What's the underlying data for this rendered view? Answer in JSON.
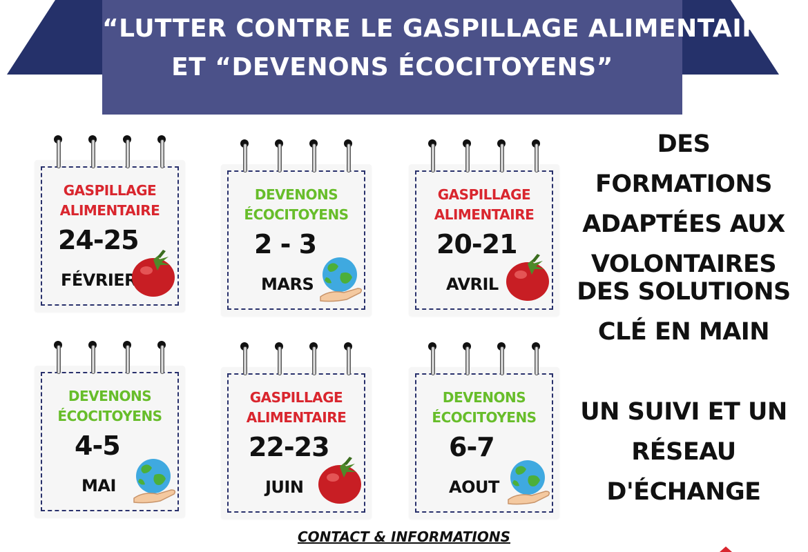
{
  "banner": {
    "line1": "“LUTTER CONTRE LE GASPILLAGE ALIMENTAIRE”",
    "line2": "ET “DEVENONS ÉCOCITOYENS”"
  },
  "colors": {
    "banner": "#4b5189",
    "ribbon": "#25316a",
    "topic_red": "#d9262e",
    "topic_green": "#67bd2a"
  },
  "cards": [
    {
      "topic_line1": "GASPILLAGE",
      "topic_line2": "ALIMENTAIRE",
      "topic_color": "red",
      "date": "24-25",
      "month": "FÉVRIER",
      "icon": "tomato-icon"
    },
    {
      "topic_line1": "DEVENONS",
      "topic_line2": "ÉCOCITOYENS",
      "topic_color": "green",
      "date": "2 - 3",
      "month": "MARS",
      "icon": "earth-hand-icon"
    },
    {
      "topic_line1": "GASPILLAGE",
      "topic_line2": "ALIMENTAIRE",
      "topic_color": "red",
      "date": "20-21",
      "month": "AVRIL",
      "icon": "tomato-icon"
    },
    {
      "topic_line1": "DEVENONS",
      "topic_line2": "ÉCOCITOYENS",
      "topic_color": "green",
      "date": "4-5",
      "month": "MAI",
      "icon": "earth-hand-icon"
    },
    {
      "topic_line1": "GASPILLAGE",
      "topic_line2": "ALIMENTAIRE",
      "topic_color": "red",
      "date": "22-23",
      "month": "JUIN",
      "icon": "tomato-icon"
    },
    {
      "topic_line1": "DEVENONS",
      "topic_line2": "ÉCOCITOYENS",
      "topic_color": "green",
      "date": "6-7",
      "month": "AOUT",
      "icon": "earth-hand-icon"
    }
  ],
  "side": {
    "block1": [
      "DES FORMATIONS",
      "ADAPTÉES AUX",
      "VOLONTAIRES"
    ],
    "block2": [
      "DES SOLUTIONS",
      "CLÉ EN MAIN"
    ],
    "block3": [
      "UN SUIVI ET UN",
      "RÉSEAU",
      "D'ÉCHANGE"
    ]
  },
  "footer": {
    "contact": "CONTACT & INFORMATIONS"
  }
}
